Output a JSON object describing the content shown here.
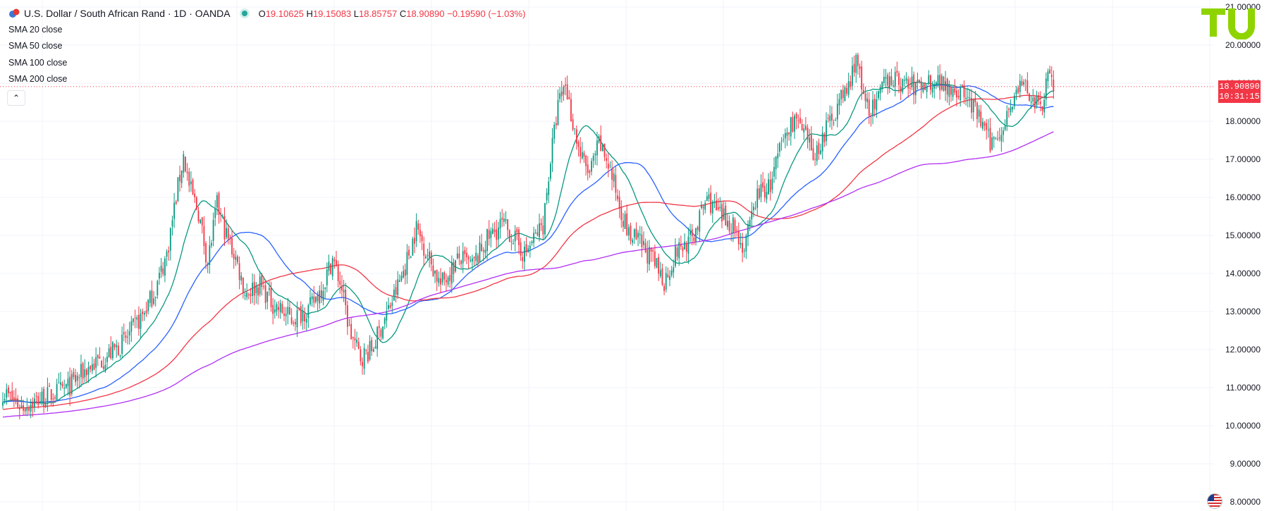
{
  "header": {
    "symbol": "U.S. Dollar / South African Rand · 1D · OANDA",
    "open_label": "O",
    "open": "19.10625",
    "high_label": "H",
    "high": "19.15083",
    "low_label": "L",
    "low": "18.85757",
    "close_label": "C",
    "close": "18.90890",
    "change": "−0.19590 (−1.03%)"
  },
  "indicators": [
    {
      "label": "SMA 20 close",
      "color": "#089981"
    },
    {
      "label": "SMA 50 close",
      "color": "#2962ff"
    },
    {
      "label": "SMA 100 close",
      "color": "#f23645"
    },
    {
      "label": "SMA 200 close",
      "color": "#b22ff5"
    }
  ],
  "price_tag": {
    "price": "18.90890",
    "countdown": "10:31:15"
  },
  "collapse_icon": "chevron-up-icon",
  "logo_icon": "tu-logo-icon",
  "flag_icon": "us-flag-icon",
  "colors": {
    "up": "#089981",
    "down": "#f23645",
    "grid": "#f0f3fa",
    "axis_text": "#131722"
  },
  "chart_data": {
    "type": "line",
    "title": "U.S. Dollar / South African Rand · 1D · OANDA",
    "ylim": [
      8,
      21
    ],
    "y_ticks": [
      "8.00000",
      "9.00000",
      "10.00000",
      "11.00000",
      "12.00000",
      "13.00000",
      "14.00000",
      "15.00000",
      "16.00000",
      "17.00000",
      "18.00000",
      "19.00000",
      "20.00000",
      "21.00000"
    ],
    "price_anchors": [
      [
        0,
        10.9
      ],
      [
        10,
        10.5
      ],
      [
        20,
        10.7
      ],
      [
        35,
        11.0
      ],
      [
        45,
        11.5
      ],
      [
        55,
        11.8
      ],
      [
        65,
        12.2
      ],
      [
        75,
        12.9
      ],
      [
        82,
        13.6
      ],
      [
        88,
        14.5
      ],
      [
        93,
        16.0
      ],
      [
        97,
        17.1
      ],
      [
        100,
        16.3
      ],
      [
        105,
        15.6
      ],
      [
        110,
        14.3
      ],
      [
        115,
        15.8
      ],
      [
        120,
        15.0
      ],
      [
        125,
        14.4
      ],
      [
        130,
        13.5
      ],
      [
        138,
        13.7
      ],
      [
        145,
        13.2
      ],
      [
        155,
        12.8
      ],
      [
        165,
        13.1
      ],
      [
        172,
        13.7
      ],
      [
        177,
        14.4
      ],
      [
        182,
        13.6
      ],
      [
        186,
        12.5
      ],
      [
        192,
        11.8
      ],
      [
        198,
        12.0
      ],
      [
        204,
        12.7
      ],
      [
        210,
        13.4
      ],
      [
        216,
        14.2
      ],
      [
        222,
        15.2
      ],
      [
        228,
        14.5
      ],
      [
        235,
        13.7
      ],
      [
        245,
        14.4
      ],
      [
        252,
        14.2
      ],
      [
        260,
        14.9
      ],
      [
        268,
        15.3
      ],
      [
        275,
        14.9
      ],
      [
        280,
        14.5
      ],
      [
        285,
        14.9
      ],
      [
        290,
        15.3
      ],
      [
        294,
        17.0
      ],
      [
        298,
        18.4
      ],
      [
        302,
        19.0
      ],
      [
        305,
        18.2
      ],
      [
        310,
        17.1
      ],
      [
        315,
        16.6
      ],
      [
        320,
        17.4
      ],
      [
        325,
        16.9
      ],
      [
        330,
        16.0
      ],
      [
        336,
        15.0
      ],
      [
        342,
        14.8
      ],
      [
        348,
        14.4
      ],
      [
        355,
        13.8
      ],
      [
        362,
        14.6
      ],
      [
        370,
        14.9
      ],
      [
        378,
        16.0
      ],
      [
        385,
        15.5
      ],
      [
        392,
        15.3
      ],
      [
        398,
        14.6
      ],
      [
        405,
        16.1
      ],
      [
        412,
        16.3
      ],
      [
        418,
        17.4
      ],
      [
        425,
        18.1
      ],
      [
        430,
        17.6
      ],
      [
        436,
        17.1
      ],
      [
        442,
        17.8
      ],
      [
        448,
        18.4
      ],
      [
        455,
        19.0
      ],
      [
        458,
        19.8
      ],
      [
        462,
        18.5
      ],
      [
        468,
        18.3
      ],
      [
        475,
        19.2
      ],
      [
        482,
        19.0
      ],
      [
        490,
        18.9
      ],
      [
        500,
        19.1
      ],
      [
        510,
        18.9
      ],
      [
        518,
        18.6
      ],
      [
        525,
        18.0
      ],
      [
        530,
        17.4
      ],
      [
        536,
        17.8
      ],
      [
        542,
        18.6
      ],
      [
        548,
        19.0
      ],
      [
        553,
        18.5
      ],
      [
        558,
        18.3
      ],
      [
        561,
        19.5
      ],
      [
        564,
        18.9
      ]
    ],
    "series": [
      {
        "name": "SMA 20 close",
        "window": 20
      },
      {
        "name": "SMA 50 close",
        "window": 50
      },
      {
        "name": "SMA 100 close",
        "window": 100
      },
      {
        "name": "SMA 200 close",
        "window": 200
      }
    ],
    "current_price": 18.9089,
    "grid": true
  }
}
